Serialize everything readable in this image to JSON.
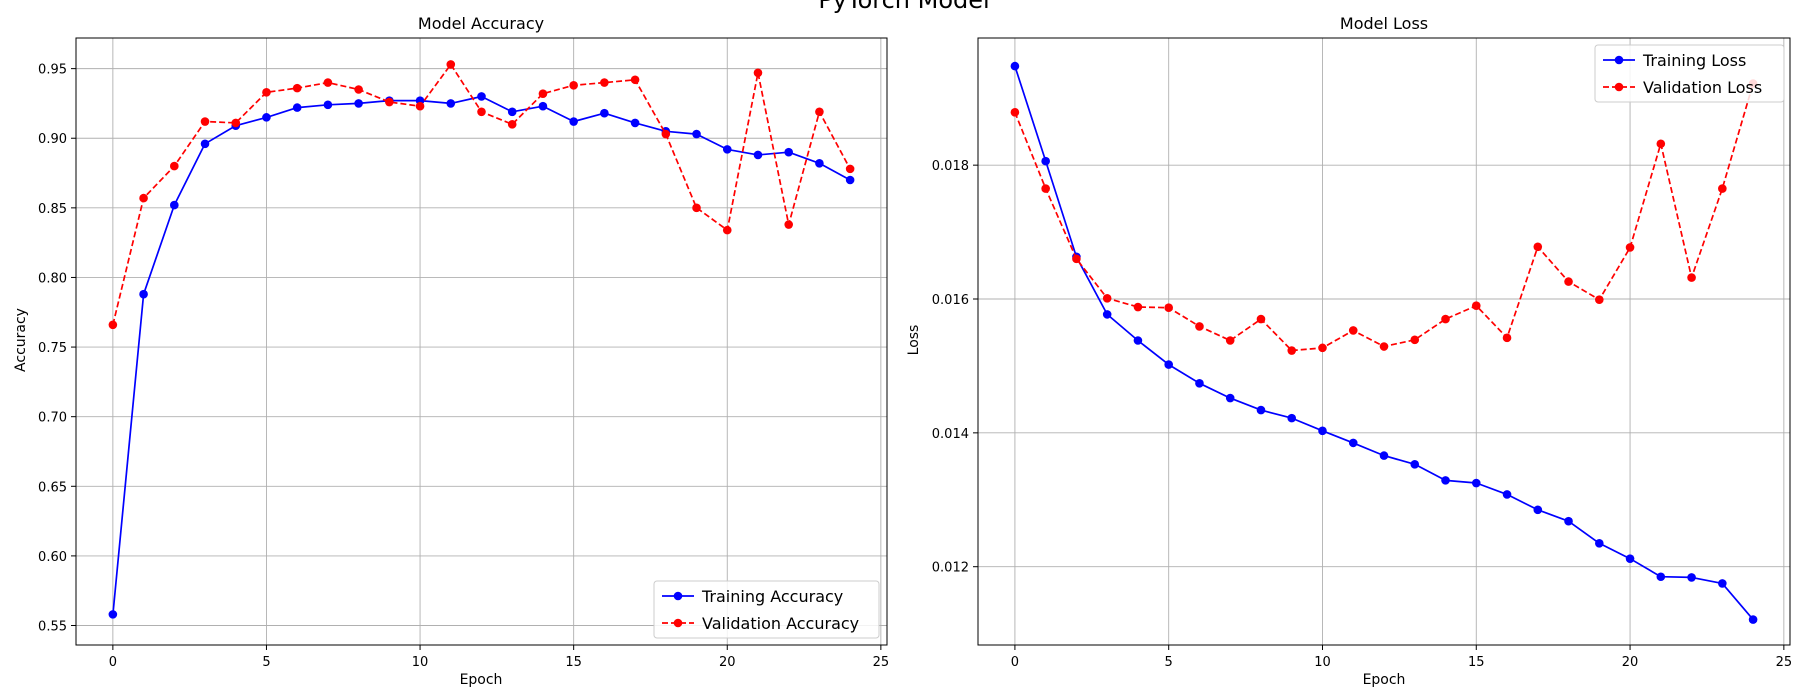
{
  "figure": {
    "suptitle": "PyTorch Model"
  },
  "colors": {
    "train": "#0000ff",
    "val": "#ff0000",
    "grid": "#b0b0b0"
  },
  "chart_data": [
    {
      "type": "line",
      "title": "Model Accuracy",
      "xlabel": "Epoch",
      "ylabel": "Accuracy",
      "xlim": [
        -1.2,
        25.2
      ],
      "ylim": [
        0.536,
        0.972
      ],
      "xticks": [
        0,
        5,
        10,
        15,
        20,
        25
      ],
      "yticks": [
        0.55,
        0.6,
        0.65,
        0.7,
        0.75,
        0.8,
        0.85,
        0.9,
        0.95
      ],
      "ytick_labels": [
        "0.55",
        "0.60",
        "0.65",
        "0.70",
        "0.75",
        "0.80",
        "0.85",
        "0.90",
        "0.95"
      ],
      "grid": true,
      "legend_position": "lower-right",
      "x": [
        0,
        1,
        2,
        3,
        4,
        5,
        6,
        7,
        8,
        9,
        10,
        11,
        12,
        13,
        14,
        15,
        16,
        17,
        18,
        19,
        20,
        21,
        22,
        23,
        24
      ],
      "series": [
        {
          "name": "Training Accuracy",
          "style": "solid",
          "color": "#0000ff",
          "values": [
            0.558,
            0.788,
            0.852,
            0.896,
            0.909,
            0.915,
            0.922,
            0.924,
            0.925,
            0.927,
            0.927,
            0.925,
            0.93,
            0.919,
            0.923,
            0.912,
            0.918,
            0.911,
            0.905,
            0.903,
            0.892,
            0.888,
            0.89,
            0.882,
            0.87
          ]
        },
        {
          "name": "Validation Accuracy",
          "style": "dashed",
          "color": "#ff0000",
          "values": [
            0.766,
            0.857,
            0.88,
            0.912,
            0.911,
            0.933,
            0.936,
            0.94,
            0.935,
            0.926,
            0.923,
            0.953,
            0.919,
            0.91,
            0.932,
            0.938,
            0.94,
            0.942,
            0.903,
            0.85,
            0.834,
            0.947,
            0.838,
            0.919,
            0.878
          ]
        }
      ]
    },
    {
      "type": "line",
      "title": "Model Loss",
      "xlabel": "Epoch",
      "ylabel": "Loss",
      "xlim": [
        -1.2,
        25.2
      ],
      "ylim": [
        0.01083,
        0.0199
      ],
      "xticks": [
        0,
        5,
        10,
        15,
        20,
        25
      ],
      "yticks": [
        0.012,
        0.014,
        0.016,
        0.018
      ],
      "ytick_labels": [
        "0.012",
        "0.014",
        "0.016",
        "0.018"
      ],
      "grid": true,
      "legend_position": "upper-right",
      "x": [
        0,
        1,
        2,
        3,
        4,
        5,
        6,
        7,
        8,
        9,
        10,
        11,
        12,
        13,
        14,
        15,
        16,
        17,
        18,
        19,
        20,
        21,
        22,
        23,
        24
      ],
      "series": [
        {
          "name": "Training Loss",
          "style": "solid",
          "color": "#0000ff",
          "values": [
            0.01948,
            0.01806,
            0.01663,
            0.01577,
            0.01538,
            0.01502,
            0.01474,
            0.01452,
            0.01434,
            0.01422,
            0.01403,
            0.01385,
            0.01366,
            0.01353,
            0.01329,
            0.01325,
            0.01308,
            0.01285,
            0.01268,
            0.01235,
            0.01212,
            0.01185,
            0.01184,
            0.01175,
            0.01121
          ]
        },
        {
          "name": "Validation Loss",
          "style": "dashed",
          "color": "#ff0000",
          "values": [
            0.01879,
            0.01765,
            0.0166,
            0.01601,
            0.01588,
            0.01587,
            0.01559,
            0.01538,
            0.0157,
            0.01523,
            0.01527,
            0.01553,
            0.01529,
            0.01539,
            0.0157,
            0.0159,
            0.01542,
            0.01678,
            0.01626,
            0.01599,
            0.01677,
            0.01832,
            0.01632,
            0.01765,
            0.01922
          ]
        }
      ]
    }
  ]
}
